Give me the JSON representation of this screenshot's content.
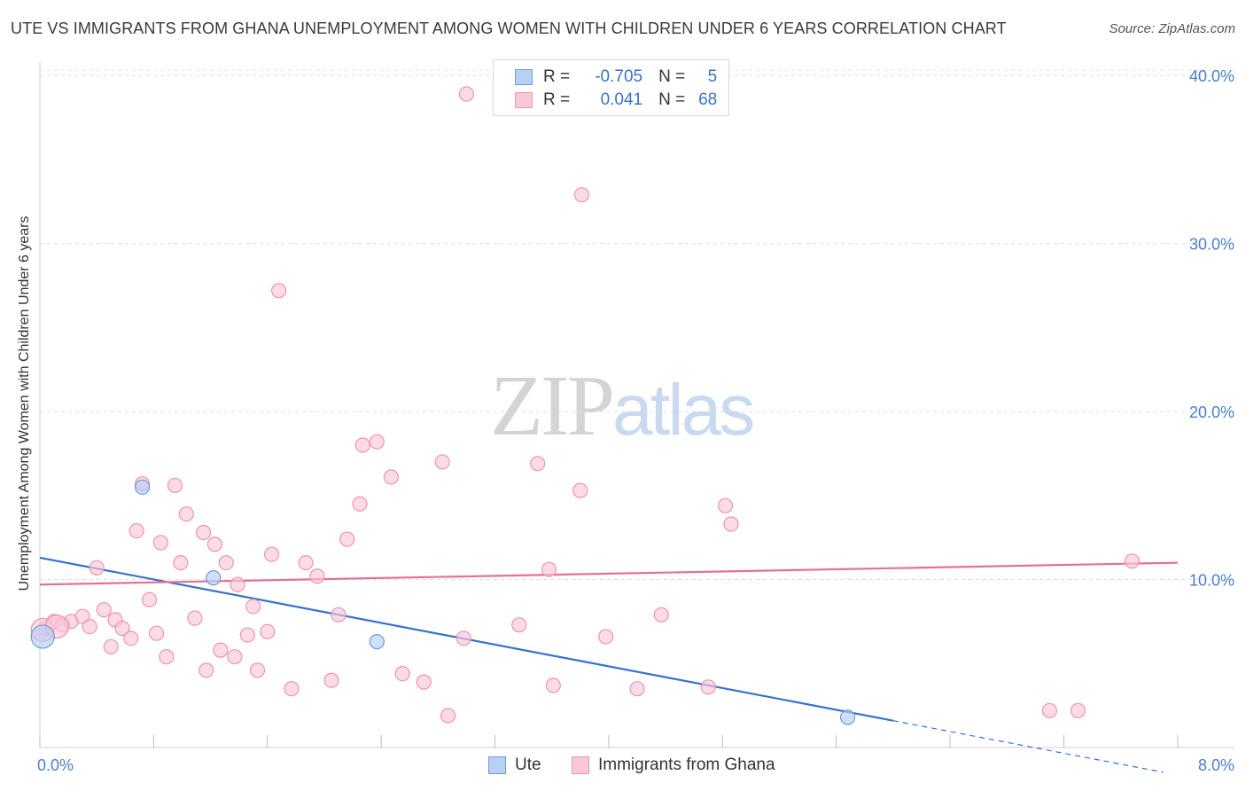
{
  "title": "UTE VS IMMIGRANTS FROM GHANA UNEMPLOYMENT AMONG WOMEN WITH CHILDREN UNDER 6 YEARS CORRELATION CHART",
  "source": "Source: ZipAtlas.com",
  "watermark": {
    "part1": "ZIP",
    "part2": "atlas"
  },
  "legend_top": {
    "r_label": "R =",
    "n_label": "N =",
    "rows": [
      {
        "r": "-0.705",
        "n": "5"
      },
      {
        "r": "0.041",
        "n": "68"
      }
    ]
  },
  "legend_bottom": [
    "Ute",
    "Immigrants from Ghana"
  ],
  "colors": {
    "ute_fill": "#b7d0f4",
    "ute_stroke": "#6f9ad6",
    "ute_line": "#3472d0",
    "ghana_fill": "#f9c8d7",
    "ghana_stroke": "#ee93b1",
    "ghana_line": "#e5709a",
    "tick_label": "#4a7fcb"
  },
  "chart_data": {
    "type": "scatter",
    "title": "UTE VS IMMIGRANTS FROM GHANA UNEMPLOYMENT AMONG WOMEN WITH CHILDREN UNDER 6 YEARS CORRELATION CHART",
    "xlabel": "",
    "ylabel": "Unemployment Among Women with Children Under 6 years",
    "xlim": [
      0,
      8.4
    ],
    "ylim": [
      0,
      40.8
    ],
    "x_tick_labels": [
      {
        "value": 0,
        "label": "0.0%"
      },
      {
        "value": 8.0,
        "label": "8.0%"
      }
    ],
    "y_tick_labels": [
      {
        "value": 10,
        "label": "10.0%"
      },
      {
        "value": 20,
        "label": "20.0%"
      },
      {
        "value": 30,
        "label": "30.0%"
      },
      {
        "value": 40,
        "label": "40.0%"
      }
    ],
    "series": [
      {
        "name": "Ute",
        "points": [
          {
            "x": 0.02,
            "y": 6.6,
            "big": true
          },
          {
            "x": 0.72,
            "y": 15.5
          },
          {
            "x": 1.22,
            "y": 10.1
          },
          {
            "x": 2.37,
            "y": 6.3
          },
          {
            "x": 5.68,
            "y": 1.8
          }
        ],
        "trend": {
          "x0": 0.0,
          "y0": 11.3,
          "x1": 6.0,
          "y1": 1.6,
          "dash_to_x": 7.9
        }
      },
      {
        "name": "Immigrants from Ghana",
        "points": [
          {
            "x": 0.04,
            "y": 7.1
          },
          {
            "x": 0.1,
            "y": 7.5
          },
          {
            "x": 0.16,
            "y": 7.3
          },
          {
            "x": 0.22,
            "y": 7.5
          },
          {
            "x": 0.3,
            "y": 7.8
          },
          {
            "x": 0.35,
            "y": 7.2
          },
          {
            "x": 0.4,
            "y": 10.7
          },
          {
            "x": 0.45,
            "y": 8.2
          },
          {
            "x": 0.5,
            "y": 6.0
          },
          {
            "x": 0.53,
            "y": 7.6
          },
          {
            "x": 0.58,
            "y": 7.1
          },
          {
            "x": 0.64,
            "y": 6.5
          },
          {
            "x": 0.68,
            "y": 12.9
          },
          {
            "x": 0.72,
            "y": 15.7
          },
          {
            "x": 0.77,
            "y": 8.8
          },
          {
            "x": 0.82,
            "y": 6.8
          },
          {
            "x": 0.85,
            "y": 12.2
          },
          {
            "x": 0.89,
            "y": 5.4
          },
          {
            "x": 0.95,
            "y": 15.6
          },
          {
            "x": 0.99,
            "y": 11.0
          },
          {
            "x": 1.03,
            "y": 13.9
          },
          {
            "x": 1.09,
            "y": 7.7
          },
          {
            "x": 1.15,
            "y": 12.8
          },
          {
            "x": 1.17,
            "y": 4.6
          },
          {
            "x": 1.23,
            "y": 12.1
          },
          {
            "x": 1.27,
            "y": 5.8
          },
          {
            "x": 1.31,
            "y": 11.0
          },
          {
            "x": 1.37,
            "y": 5.4
          },
          {
            "x": 1.39,
            "y": 9.7
          },
          {
            "x": 1.46,
            "y": 6.7
          },
          {
            "x": 1.5,
            "y": 8.4
          },
          {
            "x": 1.53,
            "y": 4.6
          },
          {
            "x": 1.6,
            "y": 6.9
          },
          {
            "x": 1.63,
            "y": 11.5
          },
          {
            "x": 1.68,
            "y": 27.2
          },
          {
            "x": 1.77,
            "y": 3.5
          },
          {
            "x": 1.87,
            "y": 11.0
          },
          {
            "x": 1.95,
            "y": 10.2
          },
          {
            "x": 2.05,
            "y": 4.0
          },
          {
            "x": 2.1,
            "y": 7.9
          },
          {
            "x": 2.16,
            "y": 12.4
          },
          {
            "x": 2.25,
            "y": 14.5
          },
          {
            "x": 2.27,
            "y": 18.0
          },
          {
            "x": 2.37,
            "y": 18.2
          },
          {
            "x": 2.47,
            "y": 16.1
          },
          {
            "x": 2.55,
            "y": 4.4
          },
          {
            "x": 2.7,
            "y": 3.9
          },
          {
            "x": 2.83,
            "y": 17.0
          },
          {
            "x": 2.87,
            "y": 1.9
          },
          {
            "x": 2.98,
            "y": 6.5
          },
          {
            "x": 3.0,
            "y": 38.9
          },
          {
            "x": 3.37,
            "y": 7.3
          },
          {
            "x": 3.5,
            "y": 16.9
          },
          {
            "x": 3.58,
            "y": 10.6
          },
          {
            "x": 3.61,
            "y": 3.7
          },
          {
            "x": 3.8,
            "y": 15.3
          },
          {
            "x": 3.81,
            "y": 32.9
          },
          {
            "x": 3.98,
            "y": 6.6
          },
          {
            "x": 4.2,
            "y": 3.5
          },
          {
            "x": 4.37,
            "y": 7.9
          },
          {
            "x": 4.7,
            "y": 3.6
          },
          {
            "x": 4.82,
            "y": 14.4
          },
          {
            "x": 4.86,
            "y": 13.3
          },
          {
            "x": 7.1,
            "y": 2.2
          },
          {
            "x": 7.3,
            "y": 2.2
          },
          {
            "x": 7.68,
            "y": 11.1
          },
          {
            "x": 0.02,
            "y": 7.0,
            "big": true
          },
          {
            "x": 0.12,
            "y": 7.2,
            "big": true
          }
        ],
        "trend": {
          "x0": 0.0,
          "y0": 9.7,
          "x1": 8.0,
          "y1": 11.0
        }
      }
    ]
  }
}
